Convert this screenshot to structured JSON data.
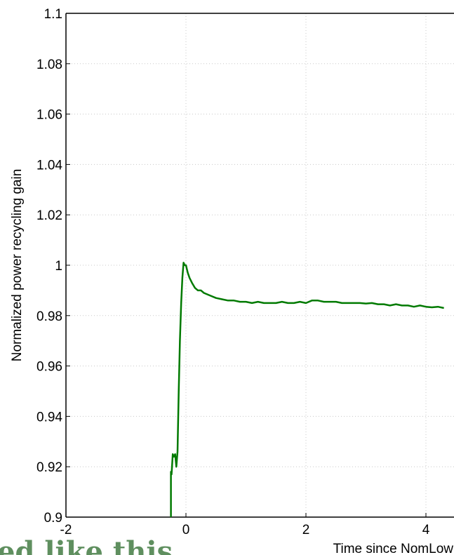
{
  "chart_data": {
    "type": "line",
    "title": "",
    "xlabel": "Time since NomLow",
    "ylabel": "Normalized power recycling gain",
    "xlim": [
      -2,
      4.3
    ],
    "ylim": [
      0.9,
      1.1
    ],
    "x_ticks": [
      -2,
      0,
      2,
      4
    ],
    "x_tick_labels": [
      "-2",
      "0",
      "2",
      "4"
    ],
    "y_ticks": [
      0.9,
      0.92,
      0.94,
      0.96,
      0.98,
      1.0,
      1.02,
      1.04,
      1.06,
      1.08,
      1.1
    ],
    "y_tick_labels": [
      "0.9",
      "0.92",
      "0.94",
      "0.96",
      "0.98",
      "1",
      "1.02",
      "1.04",
      "1.06",
      "1.08",
      "1.1"
    ],
    "grid": true,
    "series": [
      {
        "color": "#007a00",
        "x": [
          -0.25,
          -0.25,
          -0.24,
          -0.22,
          -0.2,
          -0.18,
          -0.16,
          -0.14,
          -0.12,
          -0.1,
          -0.08,
          -0.06,
          -0.04,
          -0.02,
          0.0,
          0.03,
          0.06,
          0.1,
          0.15,
          0.2,
          0.25,
          0.3,
          0.4,
          0.5,
          0.6,
          0.7,
          0.8,
          0.9,
          1.0,
          1.1,
          1.2,
          1.3,
          1.4,
          1.5,
          1.6,
          1.7,
          1.8,
          1.9,
          2.0,
          2.1,
          2.2,
          2.3,
          2.4,
          2.5,
          2.6,
          2.7,
          2.8,
          2.9,
          3.0,
          3.1,
          3.2,
          3.3,
          3.4,
          3.5,
          3.6,
          3.7,
          3.8,
          3.9,
          4.0,
          4.1,
          4.2,
          4.3
        ],
        "y": [
          0.9,
          0.918,
          0.917,
          0.925,
          0.924,
          0.925,
          0.92,
          0.926,
          0.95,
          0.97,
          0.985,
          0.995,
          1.001,
          1.0,
          1.0,
          0.997,
          0.995,
          0.993,
          0.991,
          0.99,
          0.99,
          0.989,
          0.988,
          0.987,
          0.9865,
          0.986,
          0.986,
          0.9855,
          0.9855,
          0.985,
          0.9855,
          0.985,
          0.985,
          0.985,
          0.9855,
          0.985,
          0.985,
          0.9855,
          0.985,
          0.986,
          0.986,
          0.9855,
          0.9855,
          0.9855,
          0.985,
          0.985,
          0.985,
          0.985,
          0.9848,
          0.985,
          0.9845,
          0.9845,
          0.984,
          0.9845,
          0.984,
          0.984,
          0.9835,
          0.984,
          0.9835,
          0.9833,
          0.9835,
          0.983
        ]
      }
    ]
  },
  "footer_text": "ed like this"
}
